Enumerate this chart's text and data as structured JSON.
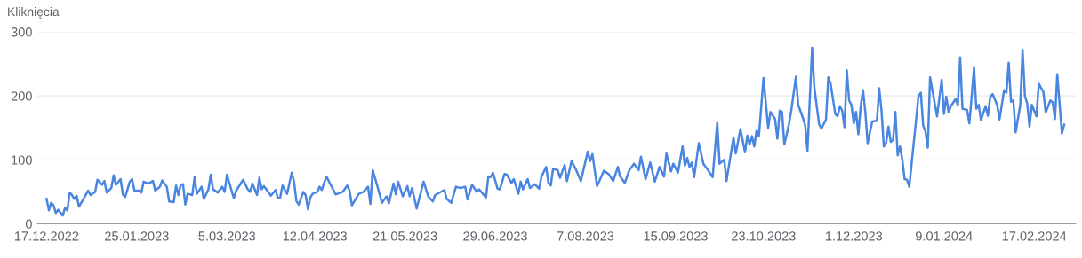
{
  "chart_data": {
    "type": "line",
    "ylabel": "Kliknięcia",
    "x": [
      "2022-12-17",
      "2022-12-18",
      "2022-12-19",
      "2022-12-20",
      "2022-12-21",
      "2022-12-22",
      "2022-12-24",
      "2022-12-25",
      "2022-12-26",
      "2022-12-27",
      "2022-12-28",
      "2022-12-29",
      "2022-12-30",
      "2022-12-31",
      "2023-01-02",
      "2023-01-04",
      "2023-01-05",
      "2023-01-07",
      "2023-01-08",
      "2023-01-10",
      "2023-01-11",
      "2023-01-12",
      "2023-01-14",
      "2023-01-15",
      "2023-01-16",
      "2023-01-18",
      "2023-01-19",
      "2023-01-20",
      "2023-01-22",
      "2023-01-23",
      "2023-01-24",
      "2023-01-26",
      "2023-01-27",
      "2023-01-28",
      "2023-01-30",
      "2023-02-01",
      "2023-02-02",
      "2023-02-04",
      "2023-02-05",
      "2023-02-07",
      "2023-02-08",
      "2023-02-10",
      "2023-02-11",
      "2023-02-12",
      "2023-02-13",
      "2023-02-14",
      "2023-02-15",
      "2023-02-16",
      "2023-02-18",
      "2023-02-19",
      "2023-02-20",
      "2023-02-22",
      "2023-02-23",
      "2023-02-25",
      "2023-02-26",
      "2023-02-27",
      "2023-03-01",
      "2023-03-03",
      "2023-03-04",
      "2023-03-05",
      "2023-03-07",
      "2023-03-08",
      "2023-03-09",
      "2023-03-12",
      "2023-03-14",
      "2023-03-15",
      "2023-03-16",
      "2023-03-18",
      "2023-03-19",
      "2023-03-20",
      "2023-03-21",
      "2023-03-22",
      "2023-03-24",
      "2023-03-26",
      "2023-03-27",
      "2023-03-28",
      "2023-03-29",
      "2023-03-31",
      "2023-04-02",
      "2023-04-03",
      "2023-04-04",
      "2023-04-05",
      "2023-04-07",
      "2023-04-08",
      "2023-04-09",
      "2023-04-10",
      "2023-04-11",
      "2023-04-13",
      "2023-04-14",
      "2023-04-15",
      "2023-04-16",
      "2023-04-17",
      "2023-04-19",
      "2023-04-21",
      "2023-04-24",
      "2023-04-26",
      "2023-04-27",
      "2023-04-28",
      "2023-05-01",
      "2023-05-03",
      "2023-05-05",
      "2023-05-06",
      "2023-05-07",
      "2023-05-09",
      "2023-05-11",
      "2023-05-13",
      "2023-05-14",
      "2023-05-16",
      "2023-05-17",
      "2023-05-18",
      "2023-05-20",
      "2023-05-22",
      "2023-05-23",
      "2023-05-24",
      "2023-05-26",
      "2023-05-29",
      "2023-05-31",
      "2023-06-02",
      "2023-06-03",
      "2023-06-07",
      "2023-06-08",
      "2023-06-10",
      "2023-06-12",
      "2023-06-14",
      "2023-06-16",
      "2023-06-17",
      "2023-06-19",
      "2023-06-21",
      "2023-06-22",
      "2023-06-25",
      "2023-06-26",
      "2023-06-27",
      "2023-06-28",
      "2023-06-30",
      "2023-07-01",
      "2023-07-03",
      "2023-07-04",
      "2023-07-06",
      "2023-07-07",
      "2023-07-09",
      "2023-07-10",
      "2023-07-11",
      "2023-07-13",
      "2023-07-14",
      "2023-07-16",
      "2023-07-18",
      "2023-07-19",
      "2023-07-21",
      "2023-07-22",
      "2023-07-23",
      "2023-07-24",
      "2023-07-26",
      "2023-07-27",
      "2023-07-29",
      "2023-07-30",
      "2023-08-01",
      "2023-08-03",
      "2023-08-05",
      "2023-08-08",
      "2023-08-09",
      "2023-08-10",
      "2023-08-12",
      "2023-08-15",
      "2023-08-17",
      "2023-08-19",
      "2023-08-21",
      "2023-08-22",
      "2023-08-24",
      "2023-08-26",
      "2023-08-28",
      "2023-08-30",
      "2023-08-31",
      "2023-09-02",
      "2023-09-04",
      "2023-09-06",
      "2023-09-08",
      "2023-09-10",
      "2023-09-11",
      "2023-09-13",
      "2023-09-14",
      "2023-09-16",
      "2023-09-18",
      "2023-09-19",
      "2023-09-20",
      "2023-09-21",
      "2023-09-22",
      "2023-09-23",
      "2023-09-25",
      "2023-09-27",
      "2023-09-29",
      "2023-10-01",
      "2023-10-03",
      "2023-10-04",
      "2023-10-06",
      "2023-10-07",
      "2023-10-10",
      "2023-10-11",
      "2023-10-13",
      "2023-10-15",
      "2023-10-16",
      "2023-10-17",
      "2023-10-18",
      "2023-10-19",
      "2023-10-20",
      "2023-10-21",
      "2023-10-23",
      "2023-10-25",
      "2023-10-26",
      "2023-10-28",
      "2023-10-29",
      "2023-10-30",
      "2023-10-31",
      "2023-11-01",
      "2023-11-03",
      "2023-11-04",
      "2023-11-06",
      "2023-11-07",
      "2023-11-09",
      "2023-11-10",
      "2023-11-11",
      "2023-11-13",
      "2023-11-14",
      "2023-11-16",
      "2023-11-17",
      "2023-11-19",
      "2023-11-20",
      "2023-11-21",
      "2023-11-23",
      "2023-11-24",
      "2023-11-25",
      "2023-11-26",
      "2023-11-27",
      "2023-11-28",
      "2023-11-29",
      "2023-11-30",
      "2023-12-01",
      "2023-12-02",
      "2023-12-03",
      "2023-12-04",
      "2023-12-05",
      "2023-12-06",
      "2023-12-07",
      "2023-12-09",
      "2023-12-11",
      "2023-12-12",
      "2023-12-13",
      "2023-12-14",
      "2023-12-15",
      "2023-12-16",
      "2023-12-17",
      "2023-12-18",
      "2023-12-19",
      "2023-12-20",
      "2023-12-21",
      "2023-12-22",
      "2023-12-23",
      "2023-12-24",
      "2023-12-25",
      "2023-12-29",
      "2023-12-30",
      "2023-12-31",
      "2024-01-01",
      "2024-01-02",
      "2024-01-03",
      "2024-01-04",
      "2024-01-06",
      "2024-01-08",
      "2024-01-09",
      "2024-01-10",
      "2024-01-11",
      "2024-01-12",
      "2024-01-14",
      "2024-01-15",
      "2024-01-16",
      "2024-01-17",
      "2024-01-19",
      "2024-01-20",
      "2024-01-22",
      "2024-01-23",
      "2024-01-24",
      "2024-01-25",
      "2024-01-27",
      "2024-01-28",
      "2024-01-29",
      "2024-01-30",
      "2024-02-01",
      "2024-02-02",
      "2024-02-04",
      "2024-02-05",
      "2024-02-06",
      "2024-02-07",
      "2024-02-08",
      "2024-02-09",
      "2024-02-11",
      "2024-02-12",
      "2024-02-13",
      "2024-02-14",
      "2024-02-15",
      "2024-02-16",
      "2024-02-18",
      "2024-02-19",
      "2024-02-21",
      "2024-02-22",
      "2024-02-24",
      "2024-02-25",
      "2024-02-26",
      "2024-02-27",
      "2024-02-29",
      "2024-03-01"
    ],
    "series": [
      {
        "color": "#4a86e0",
        "values": [
          39,
          21,
          33,
          29,
          17,
          22,
          13,
          25,
          21,
          49,
          45,
          39,
          44,
          27,
          39,
          52,
          45,
          50,
          69,
          61,
          67,
          49,
          56,
          76,
          61,
          70,
          46,
          42,
          66,
          70,
          52,
          52,
          49,
          66,
          63,
          67,
          52,
          58,
          68,
          58,
          35,
          34,
          60,
          45,
          61,
          62,
          30,
          47,
          45,
          73,
          47,
          58,
          39,
          54,
          77,
          54,
          49,
          58,
          50,
          77,
          52,
          40,
          52,
          69,
          54,
          50,
          63,
          45,
          72,
          54,
          59,
          54,
          44,
          53,
          40,
          41,
          60,
          47,
          80,
          66,
          36,
          30,
          50,
          45,
          23,
          41,
          47,
          50,
          58,
          53,
          64,
          74,
          60,
          46,
          50,
          60,
          52,
          29,
          47,
          50,
          58,
          31,
          84,
          59,
          33,
          43,
          32,
          63,
          46,
          66,
          43,
          59,
          43,
          56,
          24,
          66,
          43,
          35,
          45,
          53,
          39,
          33,
          58,
          56,
          58,
          38,
          61,
          50,
          54,
          41,
          74,
          73,
          80,
          55,
          54,
          78,
          77,
          64,
          70,
          47,
          66,
          54,
          70,
          56,
          62,
          55,
          74,
          89,
          64,
          60,
          86,
          84,
          72,
          92,
          67,
          98,
          84,
          67,
          113,
          98,
          109,
          59,
          83,
          78,
          67,
          89,
          74,
          64,
          84,
          94,
          84,
          105,
          70,
          96,
          66,
          89,
          74,
          110,
          82,
          94,
          80,
          121,
          91,
          103,
          89,
          96,
          73,
          126,
          94,
          84,
          73,
          158,
          94,
          100,
          67,
          135,
          110,
          148,
          112,
          138,
          124,
          137,
          121,
          146,
          137,
          228,
          150,
          175,
          164,
          133,
          177,
          175,
          124,
          156,
          177,
          230,
          186,
          166,
          154,
          114,
          275,
          212,
          156,
          149,
          163,
          229,
          219,
          172,
          168,
          184,
          177,
          151,
          240,
          193,
          186,
          157,
          175,
          140,
          184,
          209,
          175,
          126,
          160,
          161,
          212,
          177,
          121,
          127,
          152,
          128,
          131,
          175,
          107,
          121,
          100,
          70,
          69,
          58,
          200,
          205,
          154,
          144,
          119,
          229,
          209,
          168,
          225,
          172,
          199,
          175,
          184,
          195,
          186,
          260,
          180,
          178,
          157,
          244,
          180,
          186,
          162,
          184,
          169,
          198,
          203,
          186,
          163,
          209,
          205,
          252,
          191,
          193,
          143,
          186,
          272,
          200,
          188,
          152,
          186,
          168,
          219,
          206,
          174,
          193,
          190,
          164,
          234,
          141,
          155
        ]
      }
    ],
    "xlim": [
      "2022-12-13",
      "2024-03-06"
    ],
    "xticks": [
      {
        "value": "2022-12-17",
        "label": "17.12.2022"
      },
      {
        "value": "2023-01-25",
        "label": "25.01.2023"
      },
      {
        "value": "2023-03-05",
        "label": "5.03.2023"
      },
      {
        "value": "2023-04-12",
        "label": "12.04.2023"
      },
      {
        "value": "2023-05-21",
        "label": "21.05.2023"
      },
      {
        "value": "2023-06-29",
        "label": "29.06.2023"
      },
      {
        "value": "2023-08-07",
        "label": "7.08.2023"
      },
      {
        "value": "2023-09-15",
        "label": "15.09.2023"
      },
      {
        "value": "2023-10-23",
        "label": "23.10.2023"
      },
      {
        "value": "2023-12-01",
        "label": "1.12.2023"
      },
      {
        "value": "2024-01-09",
        "label": "9.01.2024"
      },
      {
        "value": "2024-02-17",
        "label": "17.02.2024"
      }
    ],
    "ylim": [
      0,
      300
    ],
    "yticks": [
      0,
      100,
      200,
      300
    ],
    "grid": "y",
    "marker": "none",
    "line_style": "solid"
  }
}
